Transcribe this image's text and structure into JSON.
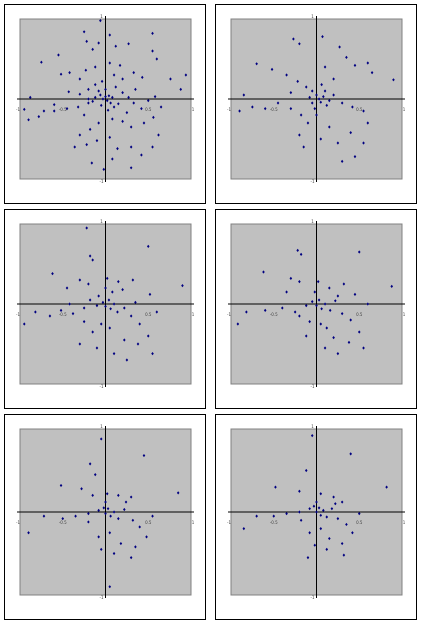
{
  "colors": {
    "plot_bg": "#c0c0c0",
    "plot_border": "#808080",
    "axis": "#000000",
    "marker": "#000080",
    "tick_label": "#404040"
  },
  "chart_data": [
    {
      "type": "scatter",
      "xlim": [
        -1,
        1
      ],
      "ylim": [
        -1,
        1
      ],
      "xticks": [
        "-1",
        "-0.5",
        "0.5",
        "1"
      ],
      "yticks": [
        "1",
        "-1"
      ],
      "grid": false,
      "legend": "none",
      "points": [
        [
          -0.06,
          0.98
        ],
        [
          -0.08,
          0.7
        ],
        [
          -0.25,
          0.84
        ],
        [
          -0.22,
          0.72
        ],
        [
          -0.15,
          0.62
        ],
        [
          0.05,
          0.8
        ],
        [
          0.12,
          0.66
        ],
        [
          0.27,
          0.69
        ],
        [
          0.55,
          0.82
        ],
        [
          0.55,
          0.6
        ],
        [
          0.6,
          0.5
        ],
        [
          0.94,
          0.3
        ],
        [
          0.88,
          0.12
        ],
        [
          0.76,
          0.25
        ],
        [
          -0.75,
          0.46
        ],
        [
          -0.52,
          0.31
        ],
        [
          -0.55,
          0.55
        ],
        [
          -0.42,
          0.33
        ],
        [
          -0.3,
          0.25
        ],
        [
          -0.23,
          0.36
        ],
        [
          -0.12,
          0.4
        ],
        [
          0.05,
          0.45
        ],
        [
          0.17,
          0.42
        ],
        [
          0.33,
          0.33
        ],
        [
          0.43,
          0.27
        ],
        [
          0.2,
          0.25
        ],
        [
          0.1,
          0.3
        ],
        [
          -0.04,
          0.22
        ],
        [
          -0.12,
          0.18
        ],
        [
          -0.2,
          0.12
        ],
        [
          -0.3,
          0.06
        ],
        [
          -0.43,
          0.09
        ],
        [
          -0.6,
          -0.07
        ],
        [
          -0.72,
          -0.15
        ],
        [
          -0.88,
          0.02
        ],
        [
          -0.95,
          -0.13
        ],
        [
          -0.9,
          -0.26
        ],
        [
          -0.78,
          -0.22
        ],
        [
          -0.6,
          -0.15
        ],
        [
          -0.45,
          -0.12
        ],
        [
          -0.32,
          -0.1
        ],
        [
          -0.2,
          -0.05
        ],
        [
          -0.12,
          0.02
        ],
        [
          -0.06,
          0.05
        ],
        [
          -0.03,
          0.0
        ],
        [
          0.0,
          0.03
        ],
        [
          0.02,
          -0.02
        ],
        [
          0.04,
          0.04
        ],
        [
          0.06,
          -0.05
        ],
        [
          0.08,
          0.02
        ],
        [
          -0.05,
          -0.08
        ],
        [
          0.1,
          -0.1
        ],
        [
          0.15,
          -0.06
        ],
        [
          0.2,
          0.08
        ],
        [
          0.27,
          0.02
        ],
        [
          0.33,
          -0.05
        ],
        [
          0.42,
          -0.12
        ],
        [
          0.5,
          -0.02
        ],
        [
          0.58,
          0.03
        ],
        [
          0.65,
          -0.1
        ],
        [
          0.56,
          -0.23
        ],
        [
          0.45,
          -0.3
        ],
        [
          0.3,
          -0.35
        ],
        [
          0.2,
          -0.28
        ],
        [
          0.08,
          -0.25
        ],
        [
          -0.08,
          -0.3
        ],
        [
          -0.18,
          -0.38
        ],
        [
          -0.3,
          -0.45
        ],
        [
          -0.36,
          -0.6
        ],
        [
          -0.22,
          -0.57
        ],
        [
          -0.1,
          -0.52
        ],
        [
          0.05,
          -0.48
        ],
        [
          0.14,
          -0.62
        ],
        [
          0.08,
          -0.75
        ],
        [
          -0.02,
          -0.88
        ],
        [
          -0.16,
          -0.8
        ],
        [
          0.3,
          -0.6
        ],
        [
          0.42,
          -0.7
        ],
        [
          0.55,
          -0.6
        ],
        [
          0.62,
          -0.45
        ],
        [
          0.3,
          -0.86
        ],
        [
          -0.2,
          0.0
        ],
        [
          -0.15,
          -0.03
        ],
        [
          0.0,
          0.12
        ],
        [
          0.03,
          -0.14
        ],
        [
          0.12,
          0.15
        ],
        [
          -0.08,
          0.1
        ],
        [
          0.25,
          -0.17
        ],
        [
          -0.25,
          -0.2
        ],
        [
          0.35,
          0.12
        ]
      ]
    },
    {
      "type": "scatter",
      "xlim": [
        -1,
        1
      ],
      "ylim": [
        -1,
        1
      ],
      "xticks": [
        "-1",
        "-0.5",
        "0.5",
        "1"
      ],
      "yticks": [
        "1",
        "-1"
      ],
      "grid": false,
      "legend": "none",
      "points": [
        [
          -0.27,
          0.75
        ],
        [
          -0.2,
          0.69
        ],
        [
          0.07,
          0.78
        ],
        [
          0.27,
          0.65
        ],
        [
          0.35,
          0.52
        ],
        [
          0.45,
          0.42
        ],
        [
          0.65,
          0.33
        ],
        [
          0.9,
          0.24
        ],
        [
          -0.7,
          0.44
        ],
        [
          -0.52,
          0.37
        ],
        [
          -0.35,
          0.3
        ],
        [
          -0.22,
          0.22
        ],
        [
          -0.12,
          0.15
        ],
        [
          -0.05,
          0.1
        ],
        [
          0.0,
          0.05
        ],
        [
          0.03,
          0.0
        ],
        [
          0.05,
          -0.04
        ],
        [
          0.08,
          0.03
        ],
        [
          0.12,
          -0.08
        ],
        [
          0.2,
          0.05
        ],
        [
          0.3,
          -0.05
        ],
        [
          0.42,
          -0.1
        ],
        [
          0.55,
          -0.15
        ],
        [
          -0.75,
          -0.1
        ],
        [
          -0.9,
          -0.15
        ],
        [
          -0.6,
          -0.12
        ],
        [
          -0.45,
          -0.05
        ],
        [
          -0.3,
          -0.12
        ],
        [
          -0.18,
          -0.2
        ],
        [
          -0.1,
          -0.3
        ],
        [
          -0.2,
          -0.45
        ],
        [
          -0.15,
          -0.6
        ],
        [
          0.05,
          -0.5
        ],
        [
          0.15,
          -0.35
        ],
        [
          0.25,
          -0.55
        ],
        [
          0.4,
          -0.42
        ],
        [
          0.55,
          -0.55
        ],
        [
          0.45,
          -0.72
        ],
        [
          0.3,
          -0.78
        ],
        [
          0.6,
          -0.3
        ],
        [
          -0.05,
          -0.05
        ],
        [
          0.1,
          0.1
        ],
        [
          -0.02,
          -0.12
        ],
        [
          0.06,
          0.18
        ],
        [
          0.0,
          -0.2
        ],
        [
          -0.08,
          0.02
        ],
        [
          0.15,
          -0.02
        ],
        [
          0.2,
          0.25
        ],
        [
          -0.3,
          0.08
        ],
        [
          0.1,
          0.4
        ],
        [
          0.6,
          0.45
        ],
        [
          -0.85,
          0.05
        ]
      ]
    },
    {
      "type": "scatter",
      "xlim": [
        -1,
        1
      ],
      "ylim": [
        -1,
        1
      ],
      "xticks": [
        "-1",
        "-0.5",
        "0.5",
        "1"
      ],
      "yticks": [
        "1",
        "-1"
      ],
      "grid": false,
      "legend": "none",
      "points": [
        [
          -0.22,
          0.95
        ],
        [
          -0.18,
          0.6
        ],
        [
          -0.15,
          0.55
        ],
        [
          0.5,
          0.72
        ],
        [
          0.9,
          0.23
        ],
        [
          -0.62,
          0.38
        ],
        [
          -0.3,
          0.3
        ],
        [
          -0.2,
          0.25
        ],
        [
          0.02,
          0.32
        ],
        [
          0.15,
          0.28
        ],
        [
          0.32,
          0.3
        ],
        [
          0.52,
          0.12
        ],
        [
          0.2,
          0.18
        ],
        [
          0.08,
          0.15
        ],
        [
          -0.08,
          0.1
        ],
        [
          -0.18,
          0.05
        ],
        [
          -0.42,
          0.0
        ],
        [
          -0.52,
          -0.08
        ],
        [
          -0.82,
          -0.1
        ],
        [
          -0.95,
          -0.25
        ],
        [
          -0.65,
          -0.15
        ],
        [
          -0.38,
          -0.12
        ],
        [
          -0.25,
          -0.05
        ],
        [
          -0.1,
          -0.02
        ],
        [
          -0.03,
          0.02
        ],
        [
          0.0,
          -0.03
        ],
        [
          0.04,
          0.05
        ],
        [
          0.06,
          -0.06
        ],
        [
          0.1,
          0.0
        ],
        [
          0.14,
          -0.1
        ],
        [
          0.22,
          -0.05
        ],
        [
          0.3,
          -0.15
        ],
        [
          0.4,
          -0.25
        ],
        [
          0.5,
          -0.4
        ],
        [
          0.38,
          -0.5
        ],
        [
          0.22,
          -0.45
        ],
        [
          0.05,
          -0.3
        ],
        [
          -0.05,
          -0.25
        ],
        [
          -0.15,
          -0.35
        ],
        [
          -0.3,
          -0.5
        ],
        [
          -0.1,
          -0.55
        ],
        [
          0.1,
          -0.62
        ],
        [
          0.25,
          -0.7
        ],
        [
          0.55,
          -0.62
        ],
        [
          -0.25,
          -0.22
        ],
        [
          0.35,
          0.02
        ],
        [
          0.0,
          0.2
        ],
        [
          -0.45,
          0.2
        ],
        [
          0.6,
          -0.1
        ]
      ]
    },
    {
      "type": "scatter",
      "xlim": [
        -1,
        1
      ],
      "ylim": [
        -1,
        1
      ],
      "xticks": [
        "-1",
        "-0.5",
        "0.5",
        "1"
      ],
      "yticks": [
        "1",
        "-1"
      ],
      "grid": false,
      "legend": "none",
      "points": [
        [
          -0.22,
          0.67
        ],
        [
          -0.18,
          0.62
        ],
        [
          0.5,
          0.65
        ],
        [
          0.88,
          0.22
        ],
        [
          -0.62,
          0.4
        ],
        [
          -0.3,
          0.32
        ],
        [
          -0.2,
          0.28
        ],
        [
          0.02,
          0.28
        ],
        [
          0.15,
          0.2
        ],
        [
          0.32,
          0.25
        ],
        [
          0.45,
          0.12
        ],
        [
          -0.6,
          -0.08
        ],
        [
          -0.82,
          -0.1
        ],
        [
          -0.92,
          -0.25
        ],
        [
          -0.4,
          -0.05
        ],
        [
          -0.25,
          -0.1
        ],
        [
          -0.12,
          -0.02
        ],
        [
          -0.05,
          0.03
        ],
        [
          0.0,
          -0.02
        ],
        [
          0.03,
          0.05
        ],
        [
          0.06,
          -0.06
        ],
        [
          0.1,
          0.0
        ],
        [
          0.16,
          -0.08
        ],
        [
          0.22,
          0.04
        ],
        [
          0.3,
          -0.12
        ],
        [
          0.4,
          -0.2
        ],
        [
          0.5,
          -0.35
        ],
        [
          0.38,
          -0.48
        ],
        [
          0.2,
          -0.42
        ],
        [
          0.05,
          -0.25
        ],
        [
          -0.08,
          -0.22
        ],
        [
          -0.12,
          -0.4
        ],
        [
          0.1,
          -0.55
        ],
        [
          0.25,
          -0.62
        ],
        [
          0.55,
          -0.55
        ],
        [
          -0.2,
          -0.15
        ],
        [
          0.25,
          0.1
        ],
        [
          -0.02,
          0.15
        ],
        [
          0.6,
          0.0
        ],
        [
          -0.35,
          0.15
        ],
        [
          0.12,
          -0.3
        ]
      ]
    },
    {
      "type": "scatter",
      "xlim": [
        -1,
        1
      ],
      "ylim": [
        -1,
        1
      ],
      "xticks": [
        "-1",
        "-0.5",
        "0.5",
        "1"
      ],
      "yticks": [
        "1",
        "-1"
      ],
      "grid": false,
      "legend": "none",
      "points": [
        [
          -0.05,
          0.88
        ],
        [
          -0.18,
          0.58
        ],
        [
          -0.12,
          0.45
        ],
        [
          0.45,
          0.68
        ],
        [
          0.85,
          0.23
        ],
        [
          -0.52,
          0.32
        ],
        [
          -0.28,
          0.28
        ],
        [
          -0.15,
          0.2
        ],
        [
          0.02,
          0.22
        ],
        [
          0.15,
          0.2
        ],
        [
          0.3,
          0.18
        ],
        [
          -0.72,
          -0.05
        ],
        [
          -0.9,
          -0.25
        ],
        [
          -0.5,
          -0.08
        ],
        [
          -0.35,
          -0.05
        ],
        [
          -0.2,
          -0.02
        ],
        [
          -0.08,
          0.02
        ],
        [
          -0.02,
          0.05
        ],
        [
          0.0,
          -0.02
        ],
        [
          0.03,
          0.04
        ],
        [
          0.06,
          -0.05
        ],
        [
          0.1,
          0.0
        ],
        [
          0.15,
          -0.08
        ],
        [
          0.22,
          0.03
        ],
        [
          0.32,
          -0.1
        ],
        [
          0.4,
          -0.18
        ],
        [
          0.48,
          -0.3
        ],
        [
          0.35,
          -0.42
        ],
        [
          0.18,
          -0.38
        ],
        [
          0.05,
          -0.25
        ],
        [
          -0.08,
          -0.3
        ],
        [
          -0.05,
          -0.45
        ],
        [
          0.1,
          -0.5
        ],
        [
          0.3,
          -0.55
        ],
        [
          0.05,
          -0.9
        ],
        [
          -0.2,
          -0.12
        ],
        [
          0.24,
          0.12
        ],
        [
          0.0,
          0.12
        ],
        [
          0.55,
          -0.05
        ]
      ]
    },
    {
      "type": "scatter",
      "xlim": [
        -1,
        1
      ],
      "ylim": [
        -1,
        1
      ],
      "xticks": [
        "-1",
        "-0.5",
        "0.5",
        "1"
      ],
      "yticks": [
        "1",
        "-1"
      ],
      "grid": false,
      "legend": "none",
      "points": [
        [
          -0.05,
          0.92
        ],
        [
          -0.12,
          0.5
        ],
        [
          0.4,
          0.7
        ],
        [
          0.82,
          0.3
        ],
        [
          -0.48,
          0.3
        ],
        [
          -0.2,
          0.25
        ],
        [
          0.05,
          0.22
        ],
        [
          0.2,
          0.18
        ],
        [
          0.3,
          0.12
        ],
        [
          -0.7,
          -0.05
        ],
        [
          -0.85,
          -0.2
        ],
        [
          -0.5,
          -0.05
        ],
        [
          -0.35,
          -0.02
        ],
        [
          -0.2,
          0.0
        ],
        [
          -0.08,
          0.04
        ],
        [
          -0.03,
          0.07
        ],
        [
          0.0,
          0.0
        ],
        [
          0.03,
          0.05
        ],
        [
          0.05,
          -0.04
        ],
        [
          0.08,
          0.02
        ],
        [
          0.12,
          -0.06
        ],
        [
          0.18,
          0.04
        ],
        [
          0.25,
          -0.08
        ],
        [
          0.35,
          -0.15
        ],
        [
          0.42,
          -0.25
        ],
        [
          0.3,
          -0.38
        ],
        [
          0.15,
          -0.32
        ],
        [
          0.05,
          -0.2
        ],
        [
          -0.08,
          -0.25
        ],
        [
          -0.02,
          -0.4
        ],
        [
          0.12,
          -0.45
        ],
        [
          0.32,
          -0.52
        ],
        [
          -0.18,
          -0.1
        ],
        [
          0.22,
          0.1
        ],
        [
          0.0,
          0.12
        ],
        [
          0.5,
          -0.02
        ],
        [
          -0.1,
          -0.55
        ]
      ]
    }
  ]
}
